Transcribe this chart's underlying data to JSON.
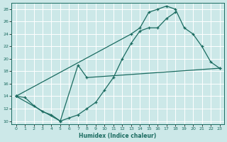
{
  "xlabel": "Humidex (Indice chaleur)",
  "bg_color": "#cce8e8",
  "grid_color": "#b0d8d8",
  "line_color": "#1a6b60",
  "xlim": [
    -0.5,
    23.5
  ],
  "ylim": [
    9.5,
    29
  ],
  "xticks": [
    0,
    1,
    2,
    3,
    4,
    5,
    6,
    7,
    8,
    9,
    10,
    11,
    12,
    13,
    14,
    15,
    16,
    17,
    18,
    19,
    20,
    21,
    22,
    23
  ],
  "yticks": [
    10,
    12,
    14,
    16,
    18,
    20,
    22,
    24,
    26,
    28
  ],
  "line1_x": [
    0,
    1,
    2,
    3,
    4,
    5,
    6,
    7,
    8,
    9,
    10,
    11,
    12,
    13,
    14,
    15,
    16,
    17,
    18
  ],
  "line1_y": [
    14,
    13.8,
    12.5,
    11.5,
    11,
    10,
    10.5,
    11,
    12,
    13,
    15,
    17,
    20,
    22.5,
    24.5,
    25,
    25,
    26.5,
    27.5
  ],
  "line2_x": [
    0,
    13,
    14,
    15,
    16,
    17,
    18,
    19,
    20,
    21,
    22,
    23
  ],
  "line2_y": [
    14,
    24,
    25,
    27.5,
    28,
    28.5,
    28,
    25,
    24,
    22,
    19.5,
    18.5
  ],
  "line3_x": [
    0,
    5,
    7,
    8,
    23
  ],
  "line3_y": [
    14,
    10,
    19,
    17,
    18.5
  ]
}
